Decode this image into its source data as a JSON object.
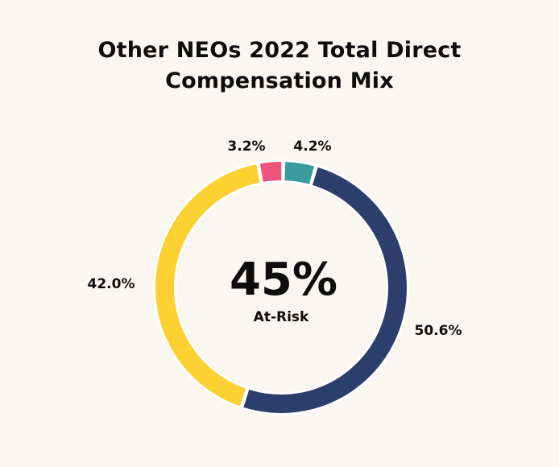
{
  "chart_data": {
    "type": "pie",
    "title_lines": [
      "Other NEOs 2022 Total Direct",
      "Compensation Mix"
    ],
    "center_value": "45%",
    "center_caption": "At-Risk",
    "slices": [
      {
        "value": 4.2,
        "label": "4.2%",
        "color": "#3a9a9c"
      },
      {
        "value": 50.6,
        "label": "50.6%",
        "color": "#2c3e6b"
      },
      {
        "value": 42.0,
        "label": "42.0%",
        "color": "#fdd132"
      },
      {
        "value": 3.2,
        "label": "3.2%",
        "color": "#f0547c"
      }
    ],
    "legend": "none",
    "grid": false
  }
}
